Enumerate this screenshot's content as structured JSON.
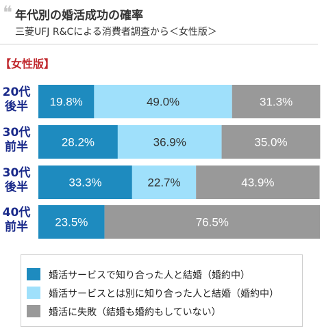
{
  "header": {
    "quote_mark": "❝",
    "title": "年代別の婚活成功の確率",
    "subtitle": "三菱UFJ R&Cによる消費者調査から＜女性版＞"
  },
  "section_label": "【女性版】",
  "colors": {
    "married_via_service": "#1e8bbf",
    "married_other": "#9fe0fb",
    "failed": "#999999",
    "label_text": "#1a2a8a",
    "section_text": "#c0282d"
  },
  "chart_data": {
    "type": "bar",
    "orientation": "horizontal",
    "stacked": true,
    "percent": true,
    "categories": [
      "20代後半",
      "30代前半",
      "30代後半",
      "40代前半"
    ],
    "category_lines": [
      [
        "20代",
        "後半"
      ],
      [
        "30代",
        "前半"
      ],
      [
        "30代",
        "後半"
      ],
      [
        "40代",
        "前半"
      ]
    ],
    "series": [
      {
        "name": "婚活サービスで知り合った人と結婚（婚約中）",
        "values": [
          19.8,
          28.2,
          33.3,
          23.5
        ],
        "labels": [
          "19.8%",
          "28.2%",
          "33.3%",
          "23.5%"
        ]
      },
      {
        "name": "婚活サービスとは別に知り合った人と結婚（婚約中）",
        "values": [
          49.0,
          36.9,
          22.7,
          0
        ],
        "labels": [
          "49.0%",
          "36.9%",
          "22.7%",
          ""
        ]
      },
      {
        "name": "婚活に失敗（結婚も婚約もしていない）",
        "values": [
          31.3,
          35.0,
          43.9,
          76.5
        ],
        "labels": [
          "31.3%",
          "35.0%",
          "43.9%",
          "76.5%"
        ]
      }
    ],
    "xlim": [
      0,
      100
    ],
    "grid": false,
    "legend_position": "bottom"
  },
  "legend": {
    "items": [
      {
        "label": "婚活サービスで知り合った人と結婚（婚約中）"
      },
      {
        "label": "婚活サービスとは別に知り合った人と結婚（婚約中）"
      },
      {
        "label": "婚活に失敗（結婚も婚約もしていない）"
      }
    ]
  }
}
